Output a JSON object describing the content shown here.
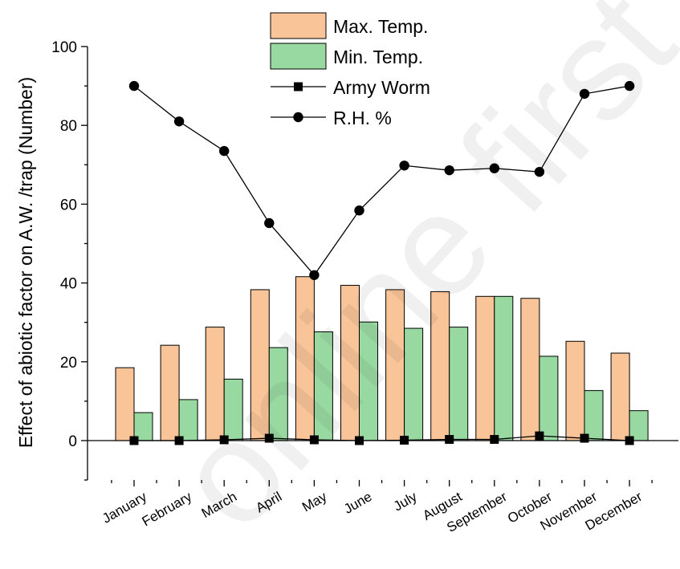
{
  "chart_data": {
    "type": "bar",
    "ylabel": "Effect of abiotic factor on A.W. /trap (Number)",
    "xlabel": "",
    "ylim": [
      -10,
      100
    ],
    "yticks": [
      0,
      20,
      40,
      60,
      80,
      100
    ],
    "categories": [
      "January",
      "February",
      "March",
      "April",
      "May",
      "June",
      "July",
      "August",
      "September",
      "October",
      "November",
      "December"
    ],
    "series": [
      {
        "name": "Max. Temp.",
        "kind": "bar",
        "color": "#f9c497",
        "values": [
          18.5,
          24.2,
          28.8,
          38.3,
          41.6,
          39.4,
          38.3,
          37.8,
          36.6,
          36.1,
          25.2,
          22.2
        ]
      },
      {
        "name": "Min. Temp.",
        "kind": "bar",
        "color": "#98d9a1",
        "values": [
          7.1,
          10.4,
          15.6,
          23.6,
          27.6,
          30.1,
          28.5,
          28.8,
          36.6,
          21.4,
          12.7,
          7.6
        ]
      },
      {
        "name": "Army Worm",
        "kind": "line",
        "marker": "square",
        "color": "#000000",
        "values": [
          0,
          0,
          0.2,
          0.6,
          0.2,
          0,
          0.1,
          0.3,
          0.3,
          1.2,
          0.6,
          0
        ]
      },
      {
        "name": "R.H. %",
        "kind": "line",
        "marker": "circle",
        "color": "#000000",
        "values": [
          90,
          81,
          73.5,
          55.2,
          42,
          58.4,
          69.8,
          68.6,
          69.1,
          68.2,
          88,
          90
        ]
      }
    ],
    "legend_position": "top",
    "grid": false
  },
  "watermark": "online first accepted"
}
